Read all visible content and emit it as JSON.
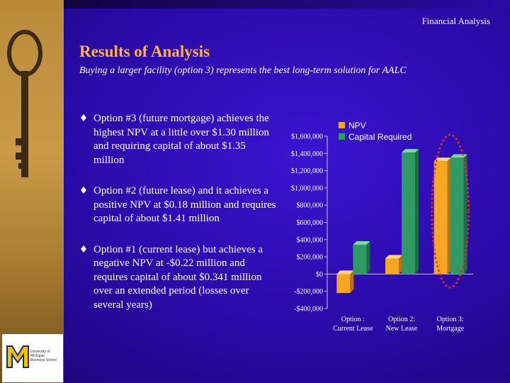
{
  "header": {
    "label": "Financial Analysis"
  },
  "title": "Results of Analysis",
  "subtitle": "Buying a larger facility (option 3) represents the best long-term solution for AALC",
  "bullets": [
    {
      "text": "Option #3 (future mortgage) achieves the highest NPV at a little over $1.30 million and requiring capital of about $1.35 million"
    },
    {
      "text": "Option #2 (future lease) and it achieves a positive NPV at $0.18 million and requires capital of about $1.41 million"
    },
    {
      "text": "Option #1 (current lease) but achieves a negative NPV at -$0.22 million and requires capital of about $0.341 million over an extended period (losses over several years)"
    }
  ],
  "logo": {
    "text": "University of Michigan Business School"
  },
  "colors": {
    "npv": "#f5a623",
    "capital": "#2f9a63",
    "accent": "#ffb347",
    "highlight": "#e0301e"
  },
  "chart_data": {
    "type": "bar",
    "categories": [
      "Option : Current Lease",
      "Option 2: New Lease",
      "Option 3: Mortgage"
    ],
    "category_lines": [
      [
        "Option :",
        "Current Lease"
      ],
      [
        "Option 2:",
        "New Lease"
      ],
      [
        "Option 3:",
        "Mortgage"
      ]
    ],
    "series": [
      {
        "name": "NPV",
        "values": [
          -220000,
          180000,
          1310000
        ]
      },
      {
        "name": "Capital Required",
        "values": [
          341000,
          1410000,
          1350000
        ]
      }
    ],
    "ylim": [
      -400000,
      1600000
    ],
    "yticks": [
      1600000,
      1400000,
      1200000,
      1000000,
      800000,
      600000,
      400000,
      200000,
      0,
      -200000,
      -400000
    ],
    "ytick_labels": [
      "$1,600,000",
      "$1,400,000",
      "$1,200,000",
      "$1,000,000",
      "$800,000",
      "$600,000",
      "$400,000",
      "$200,000",
      "$0",
      "-$200,000",
      "-$400,000"
    ],
    "legend_position": "top-right",
    "highlighted_category": 2
  }
}
